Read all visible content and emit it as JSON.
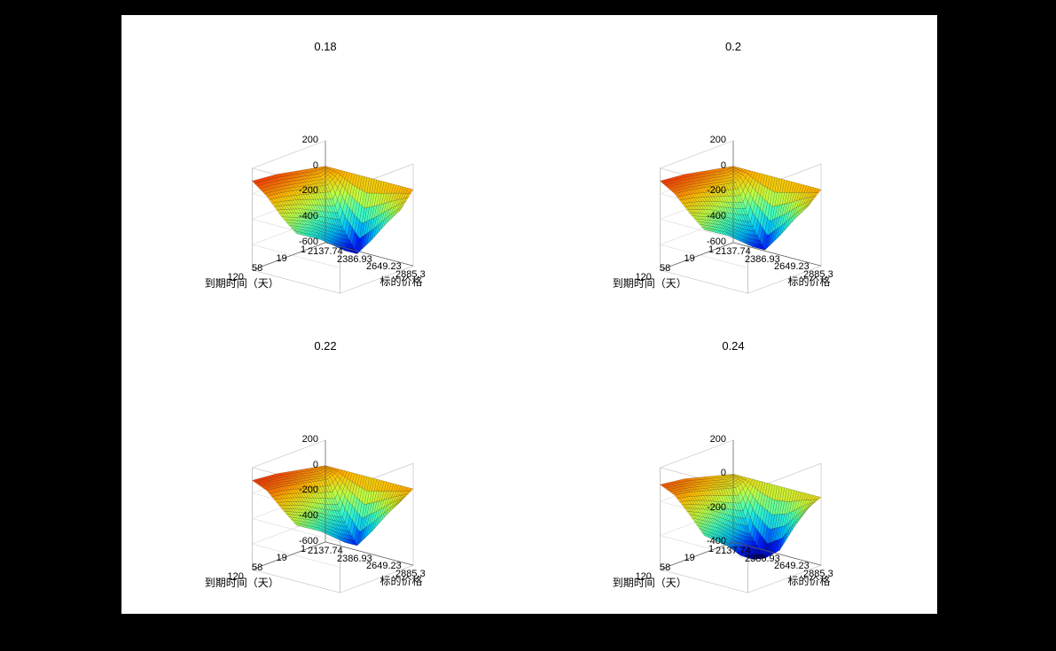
{
  "page_background": "#000000",
  "figure_background": "#ffffff",
  "grid": {
    "rows": 2,
    "cols": 2
  },
  "colormap": [
    "#000080",
    "#0020ff",
    "#00c0ff",
    "#40ffc0",
    "#c0ff40",
    "#ffc000",
    "#ff4000",
    "#800000"
  ],
  "edge_color": "#000000",
  "box_color": "#d9d9d9",
  "subplots": [
    {
      "title": "0.18",
      "xlabel": "标的价格",
      "ylabel": "到期时间（天）",
      "x_ticks": [
        "2137.74",
        "2386.93",
        "2649.23",
        "2885.3"
      ],
      "y_ticks": [
        "1",
        "19",
        "58",
        "120"
      ],
      "z_ticks": [
        "-600",
        "-400",
        "-200",
        "0",
        "200"
      ],
      "zlim": [
        -600,
        200
      ],
      "x_values": [
        2137.74,
        2262.33,
        2386.93,
        2518.08,
        2649.23,
        2767.27,
        2885.3
      ],
      "y_values": [
        1,
        10,
        19,
        38,
        58,
        89,
        120
      ],
      "z_surface": [
        [
          0,
          0,
          0,
          0,
          0,
          0,
          0
        ],
        [
          20,
          -80,
          -380,
          -560,
          -420,
          -260,
          -120
        ],
        [
          40,
          -60,
          -320,
          -500,
          -360,
          -210,
          -70
        ],
        [
          60,
          -40,
          -260,
          -420,
          -300,
          -160,
          -30
        ],
        [
          80,
          -20,
          -200,
          -340,
          -240,
          -110,
          10
        ],
        [
          90,
          0,
          -160,
          -280,
          -190,
          -70,
          30
        ],
        [
          100,
          10,
          -120,
          -220,
          -140,
          -30,
          50
        ]
      ]
    },
    {
      "title": "0.2",
      "xlabel": "标的价格",
      "ylabel": "到期时间（天）",
      "x_ticks": [
        "2137.74",
        "2386.93",
        "2649.23",
        "2885.3"
      ],
      "y_ticks": [
        "1",
        "19",
        "58",
        "120"
      ],
      "z_ticks": [
        "-600",
        "-400",
        "-200",
        "0",
        "200"
      ],
      "zlim": [
        -600,
        200
      ],
      "x_values": [
        2137.74,
        2262.33,
        2386.93,
        2518.08,
        2649.23,
        2767.27,
        2885.3
      ],
      "y_values": [
        1,
        10,
        19,
        38,
        58,
        89,
        120
      ],
      "z_surface": [
        [
          0,
          0,
          0,
          0,
          0,
          0,
          0
        ],
        [
          20,
          -60,
          -340,
          -530,
          -390,
          -230,
          -90
        ],
        [
          40,
          -40,
          -290,
          -470,
          -330,
          -180,
          -40
        ],
        [
          60,
          -20,
          -230,
          -390,
          -270,
          -130,
          0
        ],
        [
          80,
          0,
          -170,
          -310,
          -210,
          -80,
          40
        ],
        [
          90,
          20,
          -130,
          -250,
          -160,
          -40,
          60
        ],
        [
          100,
          30,
          -90,
          -190,
          -110,
          0,
          80
        ]
      ]
    },
    {
      "title": "0.22",
      "xlabel": "标的价格",
      "ylabel": "到期时间（天）",
      "x_ticks": [
        "2137.74",
        "2386.93",
        "2649.23",
        "2885.3"
      ],
      "y_ticks": [
        "1",
        "19",
        "58",
        "120"
      ],
      "z_ticks": [
        "-600",
        "-400",
        "-200",
        "0",
        "200"
      ],
      "zlim": [
        -600,
        200
      ],
      "x_values": [
        2137.74,
        2262.33,
        2386.93,
        2518.08,
        2649.23,
        2767.27,
        2885.3
      ],
      "y_values": [
        1,
        10,
        19,
        38,
        58,
        89,
        120
      ],
      "z_surface": [
        [
          0,
          0,
          0,
          0,
          0,
          0,
          0
        ],
        [
          20,
          -40,
          -310,
          -500,
          -360,
          -200,
          -60
        ],
        [
          40,
          -20,
          -260,
          -440,
          -300,
          -150,
          -10
        ],
        [
          60,
          0,
          -200,
          -360,
          -240,
          -100,
          30
        ],
        [
          80,
          20,
          -140,
          -280,
          -180,
          -50,
          70
        ],
        [
          90,
          40,
          -100,
          -220,
          -130,
          -10,
          90
        ],
        [
          100,
          50,
          -60,
          -160,
          -80,
          30,
          110
        ]
      ]
    },
    {
      "title": "0.24",
      "xlabel": "标的价格",
      "ylabel": "到期时间（天）",
      "x_ticks": [
        "2137.74",
        "2386.93",
        "2649.23",
        "2885.3"
      ],
      "y_ticks": [
        "1",
        "19",
        "58",
        "120"
      ],
      "z_ticks": [
        "-400",
        "-200",
        "0",
        "200"
      ],
      "zlim": [
        -400,
        200
      ],
      "x_values": [
        2137.74,
        2262.33,
        2386.93,
        2518.08,
        2649.23,
        2767.27,
        2885.3
      ],
      "y_values": [
        1,
        10,
        19,
        38,
        58,
        89,
        120
      ],
      "z_surface": [
        [
          0,
          0,
          0,
          0,
          0,
          0,
          0
        ],
        [
          20,
          -30,
          -280,
          -400,
          -330,
          -170,
          -30
        ],
        [
          40,
          -10,
          -230,
          -380,
          -270,
          -120,
          20
        ],
        [
          60,
          10,
          -170,
          -330,
          -210,
          -70,
          60
        ],
        [
          80,
          30,
          -110,
          -250,
          -150,
          -20,
          100
        ],
        [
          90,
          50,
          -70,
          -190,
          -100,
          20,
          120
        ],
        [
          100,
          60,
          -30,
          -130,
          -50,
          60,
          140
        ]
      ]
    }
  ]
}
